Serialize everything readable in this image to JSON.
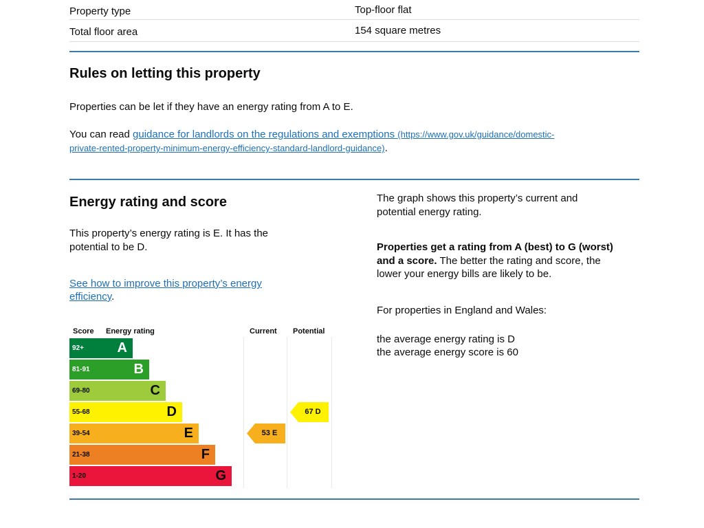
{
  "property_details": {
    "rows": [
      {
        "label": "Property type",
        "value": "Top-floor flat"
      },
      {
        "label": "Total floor area",
        "value": "154 square metres"
      }
    ]
  },
  "letting": {
    "heading": "Rules on letting this property",
    "para1": "Properties can be let if they have an energy rating from A to E.",
    "para2_prefix": "You can read ",
    "link_text": "guidance for landlords on the regulations and exemptions",
    "link_url_part1": "(https://www.gov.uk/guidance/domestic-",
    "link_url_part2": "private-rented-property-minimum-energy-efficiency-standard-landlord-guidance)",
    "para2_suffix": "."
  },
  "energy": {
    "heading": "Energy rating and score",
    "intro_line1": "This property’s energy rating is E. It has the",
    "intro_line2": "potential to be D.",
    "improve_link_line1": "See how to improve this property’s energy",
    "improve_link_line2": "efficiency",
    "improve_link_suffix": ".",
    "graph_line1": "The graph shows this property’s current and",
    "graph_line2": "potential energy rating.",
    "ratings_bold_line1": "Properties get a rating from A (best) to G (worst)",
    "ratings_bold_line2": "and a score.",
    "ratings_rest_line2": " The better the rating and score, the",
    "ratings_line3": "lower your energy bills are likely to be.",
    "england_wales": "For properties in England and Wales:",
    "avg_rating": "the average energy rating is D",
    "avg_score": "the average energy score is 60"
  },
  "chart_data": {
    "type": "bar",
    "headers": {
      "score": "Score",
      "rating": "Energy rating",
      "current": "Current",
      "potential": "Potential"
    },
    "bands": [
      {
        "letter": "A",
        "range": "92+",
        "color": "#007f3d",
        "text_color": "#ffffff"
      },
      {
        "letter": "B",
        "range": "81-91",
        "color": "#2c9f29",
        "text_color": "#ffffff"
      },
      {
        "letter": "C",
        "range": "69-80",
        "color": "#9dcb3c",
        "text_color": "#0b0c0c"
      },
      {
        "letter": "D",
        "range": "55-68",
        "color": "#fff200",
        "text_color": "#0b0c0c"
      },
      {
        "letter": "E",
        "range": "39-54",
        "color": "#f7af1d",
        "text_color": "#0b0c0c"
      },
      {
        "letter": "F",
        "range": "21-38",
        "color": "#ed8023",
        "text_color": "#0b0c0c"
      },
      {
        "letter": "G",
        "range": "1-20",
        "color": "#e9153b",
        "text_color": "#0b0c0c"
      }
    ],
    "current": {
      "score": 53,
      "letter": "E",
      "label": "53 E",
      "color": "#f7af1d"
    },
    "potential": {
      "score": 67,
      "letter": "D",
      "label": "67 D",
      "color": "#fff200"
    }
  }
}
